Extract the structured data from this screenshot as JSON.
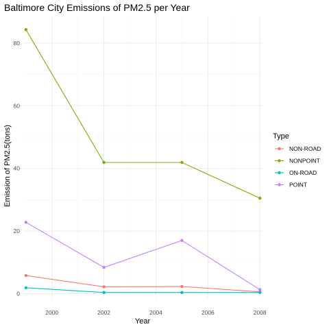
{
  "chart_data": {
    "type": "line",
    "title": "Baltimore City Emissions of PM2.5 per Year",
    "xlabel": "Year",
    "ylabel": "Emission of PM2.5(tons)",
    "x": [
      1999,
      2002,
      2005,
      2008
    ],
    "xlim": [
      1998.9,
      2008.1
    ],
    "ylim": [
      -1.2,
      88.5
    ],
    "xticks": [
      2000,
      2002,
      2004,
      2006,
      2008
    ],
    "yticks": [
      0,
      20,
      40,
      60,
      80
    ],
    "grid": true,
    "legend": {
      "title": "Type",
      "placement": "right"
    },
    "series": [
      {
        "name": "NON-ROAD",
        "color": "#F8766D",
        "values": [
          5.8,
          2.2,
          2.3,
          0.6
        ]
      },
      {
        "name": "NONPOINT",
        "color": "#7CAE00",
        "values": [
          84.3,
          41.9,
          41.9,
          30.5
        ]
      },
      {
        "name": "ON-ROAD",
        "color": "#00BFC4",
        "values": [
          1.9,
          0.4,
          0.4,
          0.4
        ]
      },
      {
        "name": "POINT",
        "color": "#C77CFF",
        "values": [
          22.8,
          8.4,
          17.0,
          1.3
        ]
      }
    ]
  }
}
